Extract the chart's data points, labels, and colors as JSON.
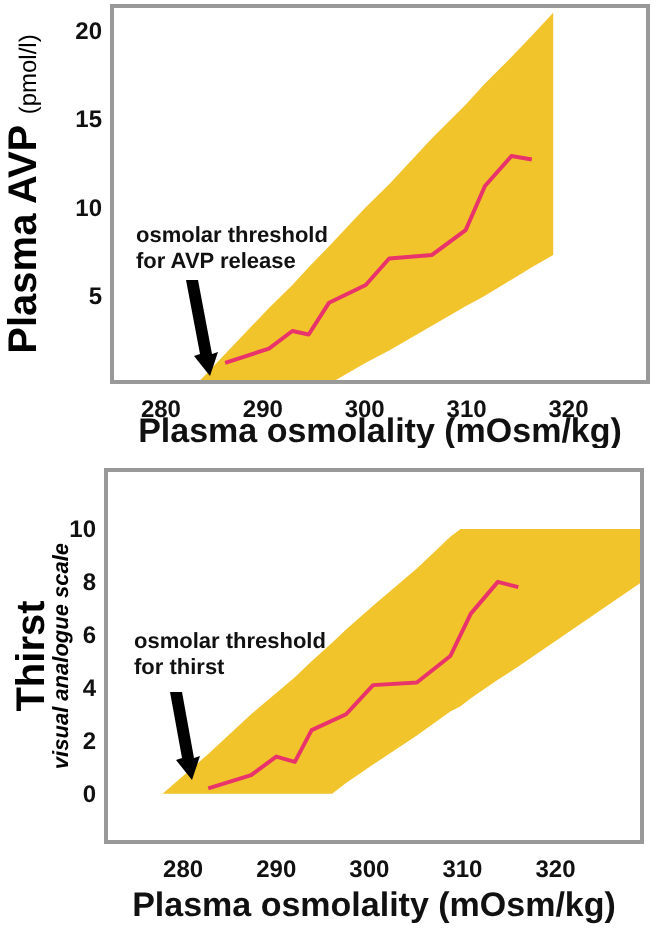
{
  "chart_data": [
    {
      "type": "line",
      "xlabel": "Plasma osmolality (mOsm/kg)",
      "ylabel": "Plasma AVP (pmol/l)",
      "xlim": [
        275,
        328
      ],
      "ylim": [
        0,
        21.5
      ],
      "xticks": [
        280,
        290,
        300,
        310,
        320
      ],
      "yticks": [
        5,
        10,
        15,
        20
      ],
      "grid": false,
      "legend": false,
      "marker": "none",
      "annotations": [
        "osmolar threshold\nfor AVP release"
      ],
      "series": [
        {
          "color": "#e8336b",
          "x": [
            283.5,
            286.3,
            290.6,
            292.9,
            294.5,
            296.5,
            300.1,
            302.4,
            306.6,
            309.9,
            311.8,
            314.4,
            316.4,
            318.5
          ],
          "values": [
            null,
            1.2,
            2.0,
            3.0,
            2.8,
            4.6,
            5.6,
            7.1,
            7.3,
            8.7,
            11.2,
            12.9,
            12.7,
            null
          ],
          "lower": [
            0,
            0,
            0,
            0,
            0,
            0,
            1.2,
            1.9,
            3.3,
            4.4,
            5.0,
            5.9,
            6.6,
            7.3
          ],
          "upper": [
            0,
            1.7,
            4.3,
            5.6,
            6.6,
            7.8,
            10.0,
            11.3,
            13.9,
            15.8,
            17.0,
            18.5,
            19.7,
            21
          ]
        }
      ]
    },
    {
      "type": "line",
      "xlabel": "Plasma osmolality (mOsm/kg)",
      "ylabel": "Thirst\nvisual analogue scale",
      "xlim": [
        271.5,
        329.5
      ],
      "ylim": [
        -1.9,
        12.3
      ],
      "xticks": [
        280,
        290,
        300,
        310,
        320
      ],
      "yticks": [
        0,
        2,
        4,
        6,
        8,
        10
      ],
      "grid": false,
      "legend": false,
      "marker": "none",
      "annotations": [
        "osmolar threshold\nfor thirst"
      ],
      "series": [
        {
          "color": "#e8336b",
          "x": [
            277.8,
            282.7,
            287.3,
            290,
            292,
            293.8,
            296,
            297.5,
            300.4,
            305.1,
            308.7,
            309.8,
            310.9,
            313.8,
            316,
            329.3
          ],
          "values": [
            null,
            0.2,
            0.7,
            1.4,
            1.2,
            2.4,
            null,
            3.0,
            4.1,
            4.2,
            5.2,
            null,
            6.8,
            8.0,
            7.8,
            null
          ],
          "lower": [
            0,
            0,
            0,
            0,
            0,
            0,
            0,
            0.4,
            1.1,
            2.2,
            3.1,
            3.3,
            3.6,
            4.3,
            4.8,
            8.0
          ],
          "upper": [
            0,
            1.5,
            3.0,
            3.8,
            4.4,
            5.0,
            5.7,
            6.2,
            7.1,
            8.5,
            9.7,
            10,
            10,
            10,
            10,
            10
          ]
        }
      ]
    }
  ]
}
